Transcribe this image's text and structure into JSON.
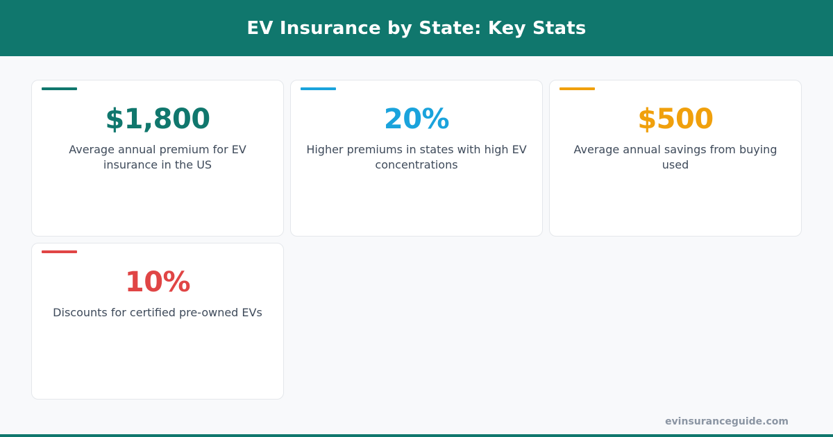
{
  "header": {
    "title": "EV Insurance by State: Key Stats"
  },
  "cards": [
    {
      "value": "$1,800",
      "label": "Average annual premium for EV insurance in the US",
      "color": "#10776d"
    },
    {
      "value": "20%",
      "label": "Higher premiums in states with high EV concentrations",
      "color": "#1aa3dc"
    },
    {
      "value": "$500",
      "label": "Average annual savings from buying used",
      "color": "#f0a00c"
    },
    {
      "value": "10%",
      "label": "Discounts for certified pre-owned EVs",
      "color": "#e04545"
    }
  ],
  "footer": {
    "site": "evinsuranceguide.com"
  }
}
